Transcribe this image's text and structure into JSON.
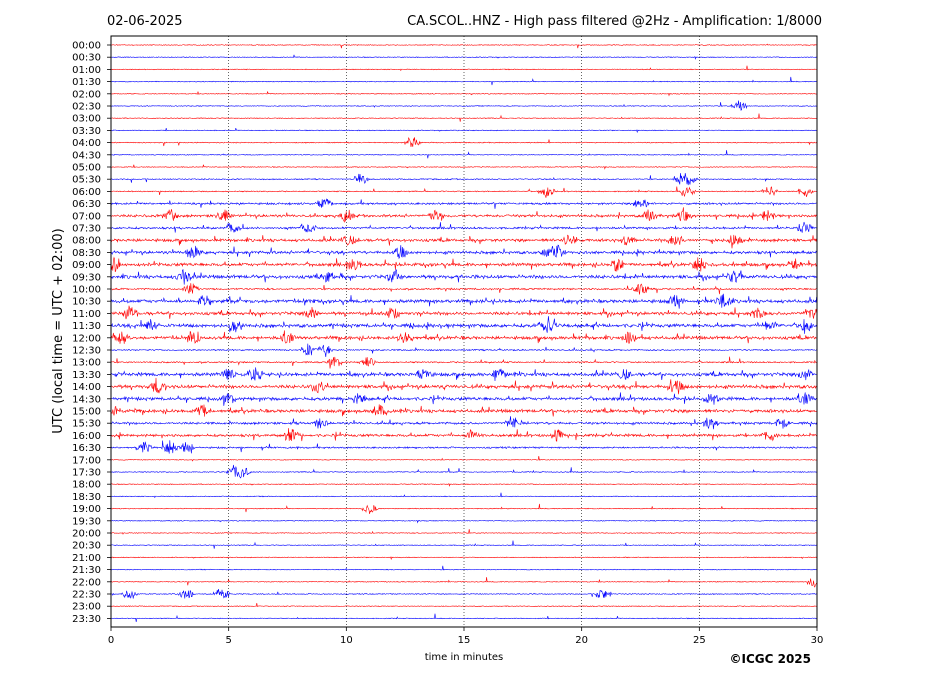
{
  "header": {
    "date": "02-06-2025",
    "station_title": "CA.SCOL..HNZ - High pass filtered @2Hz - Amplification: 1/8000"
  },
  "copyright": "©ICGC 2025",
  "chart_data": {
    "type": "line",
    "title": "CA.SCOL..HNZ - High pass filtered @2Hz - Amplification: 1/8000",
    "xlabel": "time in minutes",
    "ylabel": "UTC (local time = UTC + 02:00)",
    "xlim": [
      0,
      30
    ],
    "x_ticks": [
      "0",
      "5",
      "10",
      "15",
      "20",
      "25",
      "30"
    ],
    "x_tick_values": [
      0,
      5,
      10,
      15,
      20,
      25,
      30
    ],
    "vertical_grid_at_minutes": [
      5,
      10,
      15,
      20,
      25
    ],
    "grid": "vertical dotted",
    "row_colors": [
      "#ff0000",
      "#0000ff"
    ],
    "rows": [
      {
        "label": "00:00",
        "color": "#ff0000",
        "activity": 0.1,
        "events": []
      },
      {
        "label": "00:30",
        "color": "#0000ff",
        "activity": 0.1,
        "events": []
      },
      {
        "label": "01:00",
        "color": "#ff0000",
        "activity": 0.1,
        "events": []
      },
      {
        "label": "01:30",
        "color": "#0000ff",
        "activity": 0.1,
        "events": []
      },
      {
        "label": "02:00",
        "color": "#ff0000",
        "activity": 0.1,
        "events": []
      },
      {
        "label": "02:30",
        "color": "#0000ff",
        "activity": 0.1,
        "events": [
          26.7
        ]
      },
      {
        "label": "03:00",
        "color": "#ff0000",
        "activity": 0.1,
        "events": []
      },
      {
        "label": "03:30",
        "color": "#0000ff",
        "activity": 0.1,
        "events": []
      },
      {
        "label": "04:00",
        "color": "#ff0000",
        "activity": 0.15,
        "events": [
          12.8
        ]
      },
      {
        "label": "04:30",
        "color": "#0000ff",
        "activity": 0.1,
        "events": []
      },
      {
        "label": "05:00",
        "color": "#ff0000",
        "activity": 0.1,
        "events": []
      },
      {
        "label": "05:30",
        "color": "#0000ff",
        "activity": 0.2,
        "events": [
          10.6,
          24.2,
          24.6
        ]
      },
      {
        "label": "06:00",
        "color": "#ff0000",
        "activity": 0.2,
        "events": [
          18.5,
          24.5,
          28.0,
          29.5
        ]
      },
      {
        "label": "06:30",
        "color": "#0000ff",
        "activity": 0.5,
        "events": [
          9.1,
          22.5
        ]
      },
      {
        "label": "07:00",
        "color": "#ff0000",
        "activity": 0.7,
        "events": [
          2.5,
          4.8,
          10.0,
          13.8,
          22.9,
          24.4,
          27.9
        ]
      },
      {
        "label": "07:30",
        "color": "#0000ff",
        "activity": 0.5,
        "events": [
          5.2,
          8.4,
          29.5
        ]
      },
      {
        "label": "08:00",
        "color": "#ff0000",
        "activity": 0.8,
        "events": [
          10.1,
          19.5,
          22.0,
          24.0,
          26.5
        ]
      },
      {
        "label": "08:30",
        "color": "#0000ff",
        "activity": 0.8,
        "events": [
          3.5,
          12.3,
          18.6,
          19.0
        ]
      },
      {
        "label": "09:00",
        "color": "#ff0000",
        "activity": 0.9,
        "events": [
          0.1,
          10.3,
          21.5,
          25.0,
          29.0
        ]
      },
      {
        "label": "09:30",
        "color": "#0000ff",
        "activity": 1.0,
        "events": [
          3.1,
          9.2,
          12.1,
          26.5
        ]
      },
      {
        "label": "10:00",
        "color": "#ff0000",
        "activity": 0.4,
        "events": [
          3.4,
          22.5
        ]
      },
      {
        "label": "10:30",
        "color": "#0000ff",
        "activity": 1.0,
        "events": [
          4.0,
          24.0,
          26.0
        ]
      },
      {
        "label": "11:00",
        "color": "#ff0000",
        "activity": 0.9,
        "events": [
          0.8,
          8.5,
          12.0,
          27.5,
          29.8
        ]
      },
      {
        "label": "11:30",
        "color": "#0000ff",
        "activity": 1.0,
        "events": [
          1.7,
          5.3,
          18.5,
          28.0,
          29.5
        ]
      },
      {
        "label": "12:00",
        "color": "#ff0000",
        "activity": 0.9,
        "events": [
          0.5,
          3.5,
          7.5,
          12.5,
          22.0
        ]
      },
      {
        "label": "12:30",
        "color": "#0000ff",
        "activity": 0.3,
        "events": [
          8.4,
          9.1
        ]
      },
      {
        "label": "13:00",
        "color": "#ff0000",
        "activity": 0.3,
        "events": [
          9.5,
          10.9
        ]
      },
      {
        "label": "13:30",
        "color": "#0000ff",
        "activity": 1.0,
        "events": [
          5.0,
          6.1,
          13.3,
          16.5,
          21.8,
          29.5
        ]
      },
      {
        "label": "14:00",
        "color": "#ff0000",
        "activity": 1.0,
        "events": [
          2.0,
          8.8,
          24.0
        ]
      },
      {
        "label": "14:30",
        "color": "#0000ff",
        "activity": 0.9,
        "events": [
          5.0,
          10.5,
          25.5,
          29.5
        ]
      },
      {
        "label": "15:00",
        "color": "#ff0000",
        "activity": 0.9,
        "events": [
          0.1,
          3.9,
          11.4
        ]
      },
      {
        "label": "15:30",
        "color": "#0000ff",
        "activity": 0.6,
        "events": [
          8.9,
          17.1,
          25.5,
          28.5
        ]
      },
      {
        "label": "16:00",
        "color": "#ff0000",
        "activity": 0.7,
        "events": [
          7.7,
          15.3,
          19.0,
          28.0
        ]
      },
      {
        "label": "16:30",
        "color": "#0000ff",
        "activity": 0.4,
        "events": [
          1.4,
          2.5,
          3.2
        ]
      },
      {
        "label": "17:00",
        "color": "#ff0000",
        "activity": 0.1,
        "events": []
      },
      {
        "label": "17:30",
        "color": "#0000ff",
        "activity": 0.15,
        "events": [
          5.2,
          5.6
        ]
      },
      {
        "label": "18:00",
        "color": "#ff0000",
        "activity": 0.1,
        "events": []
      },
      {
        "label": "18:30",
        "color": "#0000ff",
        "activity": 0.1,
        "events": []
      },
      {
        "label": "19:00",
        "color": "#ff0000",
        "activity": 0.1,
        "events": [
          11.0
        ]
      },
      {
        "label": "19:30",
        "color": "#0000ff",
        "activity": 0.1,
        "events": []
      },
      {
        "label": "20:00",
        "color": "#ff0000",
        "activity": 0.1,
        "events": []
      },
      {
        "label": "20:30",
        "color": "#0000ff",
        "activity": 0.1,
        "events": []
      },
      {
        "label": "21:00",
        "color": "#ff0000",
        "activity": 0.1,
        "events": []
      },
      {
        "label": "21:30",
        "color": "#0000ff",
        "activity": 0.1,
        "events": []
      },
      {
        "label": "22:00",
        "color": "#ff0000",
        "activity": 0.1,
        "events": [
          29.9
        ]
      },
      {
        "label": "22:30",
        "color": "#0000ff",
        "activity": 0.15,
        "events": [
          0.8,
          3.2,
          4.7,
          20.9
        ]
      },
      {
        "label": "23:00",
        "color": "#ff0000",
        "activity": 0.1,
        "events": []
      },
      {
        "label": "23:30",
        "color": "#0000ff",
        "activity": 0.1,
        "events": []
      }
    ]
  }
}
